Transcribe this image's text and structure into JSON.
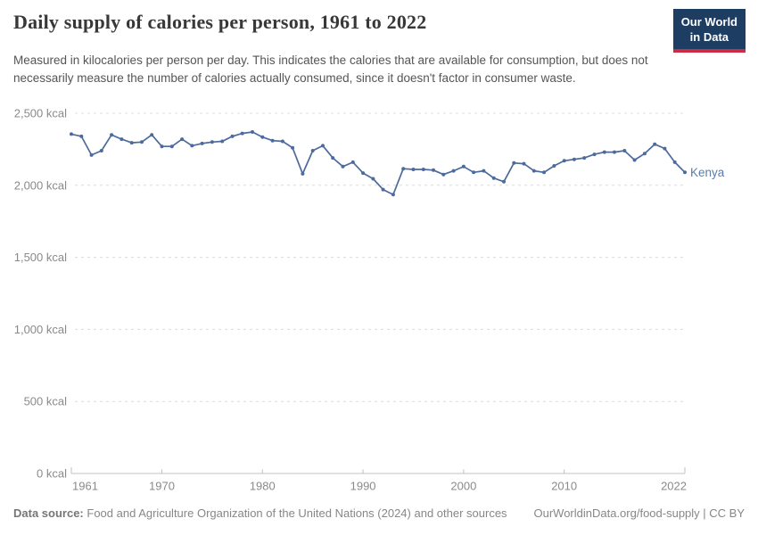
{
  "header": {
    "title": "Daily supply of calories per person, 1961 to 2022",
    "subtitle": "Measured in kilocalories per person per day. This indicates the calories that are available for consumption, but does not necessarily measure the number of calories actually consumed, since it doesn't factor in consumer waste.",
    "logo_line1": "Our World",
    "logo_line2": "in Data"
  },
  "chart_data": {
    "type": "line",
    "title": "Daily supply of calories per person, 1961 to 2022",
    "entity_label": "Kenya",
    "unit": "kcal",
    "grid": true,
    "legend_position": "end-of-line-label",
    "ylim": [
      0,
      2500
    ],
    "yticks": [
      0,
      500,
      1000,
      1500,
      2000,
      2500
    ],
    "ytick_labels": [
      "0 kcal",
      "500 kcal",
      "1,000 kcal",
      "1,500 kcal",
      "2,000 kcal",
      "2,500 kcal"
    ],
    "xlim": [
      1961,
      2022
    ],
    "xticks": [
      1961,
      1970,
      1980,
      1990,
      2000,
      2010,
      2022
    ],
    "x": [
      1961,
      1962,
      1963,
      1964,
      1965,
      1966,
      1967,
      1968,
      1969,
      1970,
      1971,
      1972,
      1973,
      1974,
      1975,
      1976,
      1977,
      1978,
      1979,
      1980,
      1981,
      1982,
      1983,
      1984,
      1985,
      1986,
      1987,
      1988,
      1989,
      1990,
      1991,
      1992,
      1993,
      1994,
      1995,
      1996,
      1997,
      1998,
      1999,
      2000,
      2001,
      2002,
      2003,
      2004,
      2005,
      2006,
      2007,
      2008,
      2009,
      2010,
      2011,
      2012,
      2013,
      2014,
      2015,
      2016,
      2017,
      2018,
      2019,
      2020,
      2021,
      2022
    ],
    "series": [
      {
        "name": "Kenya",
        "color": "#4C6A9C",
        "values": [
          2355,
          2340,
          2210,
          2240,
          2350,
          2320,
          2295,
          2300,
          2350,
          2270,
          2270,
          2320,
          2275,
          2290,
          2300,
          2305,
          2340,
          2360,
          2370,
          2335,
          2310,
          2305,
          2260,
          2080,
          2240,
          2275,
          2190,
          2130,
          2160,
          2085,
          2045,
          1970,
          1935,
          2115,
          2110,
          2110,
          2105,
          2075,
          2100,
          2130,
          2090,
          2100,
          2050,
          2025,
          2155,
          2150,
          2100,
          2090,
          2135,
          2170,
          2180,
          2190,
          2215,
          2230,
          2230,
          2240,
          2175,
          2220,
          2285,
          2255,
          2160,
          2090
        ]
      }
    ]
  },
  "footer": {
    "data_source_label": "Data source:",
    "data_source_text": "Food and Agriculture Organization of the United Nations (2024) and other sources",
    "url_text": "OurWorldinData.org/food-supply | CC BY"
  },
  "colors": {
    "line": "#4C6A9C",
    "entity_label": "#5b7ba9",
    "gridline": "#dcdcdc",
    "axis": "#c0c0c0",
    "tick_label": "#8a8a8a",
    "logo_bg": "#1d3d63",
    "logo_underline": "#cf2b45"
  }
}
